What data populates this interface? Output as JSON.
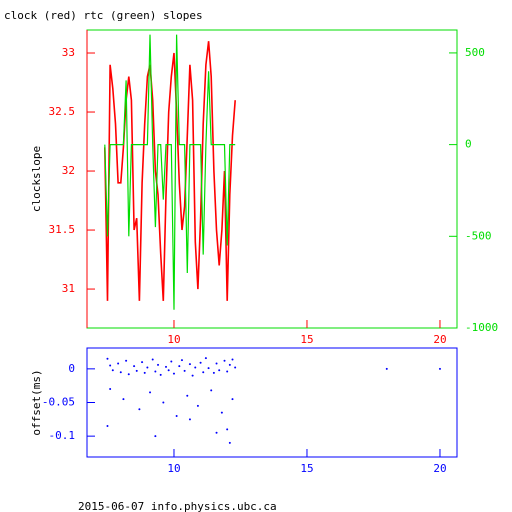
{
  "title": "clock (red) rtc (green) slopes",
  "footer": "2015-06-07 info.physics.ubc.ca",
  "chart_data": [
    {
      "type": "line",
      "ylabel": "clockslope",
      "xlim": [
        6.73,
        20.64
      ],
      "xticks": [
        10,
        15,
        20
      ],
      "ylim": [
        30.67,
        33.195
      ],
      "yticks": [
        31,
        31.5,
        32,
        32.5,
        33
      ],
      "y2lim": [
        -1000,
        625
      ],
      "y2ticks": [
        500,
        0,
        -500,
        -1000
      ],
      "x": [
        7.4,
        7.5,
        7.6,
        7.7,
        7.8,
        7.9,
        8.0,
        8.1,
        8.2,
        8.3,
        8.4,
        8.5,
        8.6,
        8.7,
        8.8,
        8.9,
        9.0,
        9.1,
        9.2,
        9.3,
        9.4,
        9.5,
        9.6,
        9.7,
        9.8,
        9.9,
        10.0,
        10.1,
        10.2,
        10.3,
        10.4,
        10.5,
        10.6,
        10.7,
        10.8,
        10.9,
        11.0,
        11.1,
        11.2,
        11.3,
        11.4,
        11.5,
        11.6,
        11.7,
        11.8,
        11.9,
        12.0,
        12.1,
        12.2,
        12.3
      ],
      "series": [
        {
          "color": "#ff0000",
          "values": [
            32.2,
            30.9,
            32.9,
            32.7,
            32.4,
            31.9,
            31.9,
            32.2,
            32.6,
            32.8,
            32.6,
            31.5,
            31.6,
            30.9,
            31.9,
            32.4,
            32.8,
            32.9,
            32.6,
            32.0,
            31.8,
            31.3,
            30.9,
            31.8,
            32.5,
            32.8,
            33.0,
            32.5,
            31.9,
            31.5,
            31.7,
            32.3,
            32.9,
            32.6,
            31.4,
            31.0,
            31.6,
            32.4,
            32.9,
            33.1,
            32.8,
            32.0,
            31.5,
            31.2,
            31.5,
            32.0,
            30.9,
            31.8,
            32.3,
            32.6
          ]
        },
        {
          "color": "#00dd00",
          "axis": "y2",
          "values": [
            0,
            -500,
            0,
            0,
            0,
            0,
            0,
            0,
            350,
            -500,
            0,
            0,
            0,
            0,
            0,
            0,
            0,
            600,
            0,
            -450,
            0,
            0,
            -300,
            0,
            0,
            0,
            -900,
            600,
            0,
            0,
            0,
            -700,
            0,
            0,
            0,
            0,
            0,
            -600,
            0,
            400,
            0,
            0,
            0,
            0,
            0,
            0,
            -550,
            0,
            0,
            0
          ]
        }
      ]
    },
    {
      "type": "scatter",
      "ylabel": "offset(ms)",
      "color": "#0000ff",
      "xlim": [
        6.73,
        20.64
      ],
      "xticks": [
        10,
        15,
        20
      ],
      "ylim": [
        -0.131,
        0.031
      ],
      "yticks": [
        0,
        -0.05,
        -0.1
      ],
      "x": [
        7.5,
        7.6,
        7.7,
        7.9,
        8.0,
        8.2,
        8.3,
        8.5,
        8.6,
        8.8,
        8.9,
        9.0,
        9.2,
        9.3,
        9.4,
        9.5,
        9.7,
        9.8,
        9.9,
        10.0,
        10.2,
        10.3,
        10.4,
        10.6,
        10.7,
        10.8,
        11.0,
        11.1,
        11.2,
        11.3,
        11.5,
        11.6,
        11.7,
        11.9,
        12.0,
        12.1,
        12.2,
        12.3,
        7.6,
        8.1,
        8.7,
        9.1,
        9.6,
        10.1,
        10.5,
        10.9,
        11.4,
        11.8,
        12.0,
        12.2,
        7.5,
        9.3,
        10.6,
        11.6,
        12.1,
        18.0,
        20.0
      ],
      "values": [
        0.015,
        0.005,
        -0.002,
        0.008,
        -0.005,
        0.012,
        -0.008,
        0.004,
        -0.003,
        0.01,
        -0.006,
        0.002,
        0.014,
        -0.004,
        0.006,
        -0.009,
        0.003,
        -0.002,
        0.011,
        -0.007,
        0.004,
        0.013,
        -0.003,
        0.007,
        -0.01,
        0.002,
        0.009,
        -0.005,
        0.016,
        0.001,
        -0.006,
        0.008,
        -0.002,
        0.012,
        -0.004,
        0.006,
        0.014,
        0.002,
        -0.03,
        -0.045,
        -0.06,
        -0.035,
        -0.05,
        -0.07,
        -0.04,
        -0.055,
        -0.032,
        -0.065,
        -0.09,
        -0.045,
        -0.085,
        -0.1,
        -0.075,
        -0.095,
        -0.11,
        0.0,
        0.0
      ]
    }
  ]
}
